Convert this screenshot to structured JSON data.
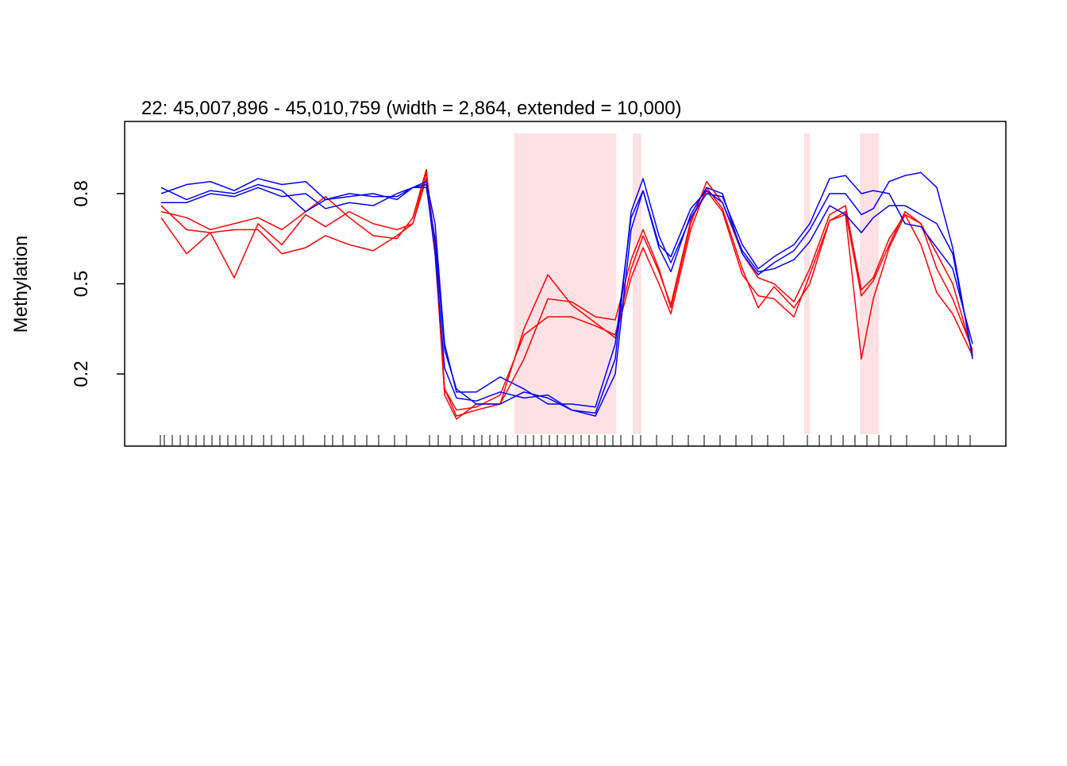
{
  "chart_data": {
    "type": "line",
    "title": "22: 45,007,896 - 45,010,759 (width = 2,864, extended = 10,000)",
    "y_label": "Methylation",
    "xlim": [
      44996982,
      45021674
    ],
    "ylim": [
      -0.04,
      1.04
    ],
    "yticks": [
      0.2,
      0.5,
      0.8
    ],
    "region_color": "#fde1e4",
    "regions": [
      {
        "start": 45007896,
        "end": 45010759
      },
      {
        "start": 45011219,
        "end": 45011463
      },
      {
        "start": 45016024,
        "end": 45016179
      },
      {
        "start": 45017581,
        "end": 45018115
      }
    ],
    "x": [
      44998005,
      44998717,
      44999384,
      45000052,
      45000719,
      45001387,
      45002054,
      45002610,
      45003277,
      45003945,
      45004612,
      45005057,
      45005435,
      45005680,
      45005947,
      45006280,
      45006837,
      45007504,
      45008171,
      45008839,
      45009506,
      45010173,
      45010729,
      45011174,
      45011508,
      45011953,
      45012287,
      45012843,
      45013288,
      45013732,
      45014289,
      45014734,
      45015178,
      45015735,
      45016179,
      45016736,
      45017180,
      45017625,
      45017959,
      45018404,
      45018849,
      45019294,
      45019739,
      45020184,
      45020740
    ],
    "series": [
      {
        "color": "#ff0000",
        "values": [
          0.74,
          0.72,
          0.68,
          0.7,
          0.72,
          0.68,
          0.74,
          0.79,
          0.72,
          0.66,
          0.65,
          0.72,
          0.88,
          0.6,
          0.15,
          0.06,
          0.08,
          0.1,
          0.25,
          0.45,
          0.44,
          0.39,
          0.38,
          0.58,
          0.68,
          0.55,
          0.42,
          0.7,
          0.84,
          0.77,
          0.6,
          0.52,
          0.5,
          0.44,
          0.55,
          0.73,
          0.76,
          0.48,
          0.52,
          0.65,
          0.73,
          0.7,
          0.55,
          0.45,
          0.28
        ]
      },
      {
        "color": "#ff0000",
        "values": [
          0.72,
          0.6,
          0.67,
          0.52,
          0.7,
          0.63,
          0.73,
          0.69,
          0.74,
          0.7,
          0.68,
          0.7,
          0.87,
          0.62,
          0.13,
          0.05,
          0.1,
          0.1,
          0.35,
          0.53,
          0.43,
          0.37,
          0.32,
          0.52,
          0.62,
          0.5,
          0.4,
          0.68,
          0.82,
          0.75,
          0.55,
          0.42,
          0.49,
          0.42,
          0.5,
          0.71,
          0.73,
          0.25,
          0.45,
          0.62,
          0.73,
          0.63,
          0.47,
          0.4,
          0.26
        ]
      },
      {
        "color": "#ff0000",
        "values": [
          0.76,
          0.68,
          0.67,
          0.68,
          0.68,
          0.6,
          0.62,
          0.66,
          0.63,
          0.61,
          0.66,
          0.7,
          0.85,
          0.64,
          0.15,
          0.08,
          0.09,
          0.13,
          0.33,
          0.39,
          0.39,
          0.36,
          0.33,
          0.55,
          0.66,
          0.54,
          0.43,
          0.71,
          0.81,
          0.74,
          0.53,
          0.46,
          0.45,
          0.39,
          0.53,
          0.71,
          0.74,
          0.46,
          0.51,
          0.63,
          0.74,
          0.7,
          0.6,
          0.5,
          0.27
        ]
      },
      {
        "color": "#0000ff",
        "values": [
          0.8,
          0.83,
          0.84,
          0.81,
          0.85,
          0.83,
          0.84,
          0.78,
          0.8,
          0.79,
          0.79,
          0.82,
          0.82,
          0.65,
          0.28,
          0.15,
          0.1,
          0.1,
          0.14,
          0.12,
          0.08,
          0.07,
          0.25,
          0.74,
          0.85,
          0.66,
          0.57,
          0.72,
          0.8,
          0.79,
          0.63,
          0.55,
          0.59,
          0.63,
          0.7,
          0.85,
          0.86,
          0.8,
          0.81,
          0.8,
          0.7,
          0.69,
          0.62,
          0.55,
          0.3
        ]
      },
      {
        "color": "#0000ff",
        "values": [
          0.82,
          0.78,
          0.81,
          0.8,
          0.83,
          0.81,
          0.74,
          0.78,
          0.79,
          0.8,
          0.78,
          0.82,
          0.83,
          0.6,
          0.22,
          0.12,
          0.11,
          0.14,
          0.12,
          0.13,
          0.08,
          0.06,
          0.2,
          0.68,
          0.81,
          0.62,
          0.54,
          0.73,
          0.82,
          0.8,
          0.6,
          0.53,
          0.57,
          0.61,
          0.68,
          0.8,
          0.8,
          0.73,
          0.75,
          0.84,
          0.86,
          0.87,
          0.82,
          0.62,
          0.25
        ]
      },
      {
        "color": "#0000ff",
        "values": [
          0.77,
          0.77,
          0.8,
          0.79,
          0.82,
          0.79,
          0.8,
          0.75,
          0.77,
          0.76,
          0.8,
          0.82,
          0.84,
          0.7,
          0.3,
          0.14,
          0.14,
          0.19,
          0.15,
          0.1,
          0.1,
          0.09,
          0.3,
          0.72,
          0.81,
          0.63,
          0.59,
          0.75,
          0.81,
          0.77,
          0.61,
          0.54,
          0.55,
          0.58,
          0.64,
          0.76,
          0.73,
          0.67,
          0.72,
          0.76,
          0.76,
          0.73,
          0.7,
          0.6,
          0.26
        ]
      }
    ],
    "rug": [
      44997983,
      44998094,
      44998317,
      44998539,
      44998762,
      44998984,
      44999207,
      44999429,
      44999651,
      44999874,
      45000096,
      45000319,
      45000541,
      45000875,
      45001097,
      45001431,
      45001765,
      45001987,
      45002588,
      45002810,
      45003099,
      45003433,
      45003767,
      45004100,
      45004545,
      45004879,
      45005524,
      45005769,
      45006102,
      45006436,
      45006770,
      45006992,
      45007215,
      45007437,
      45007660,
      45007993,
      45008216,
      45008438,
      45008661,
      45008883,
      45009106,
      45009328,
      45009550,
      45009773,
      45009995,
      45010218,
      45010440,
      45010663,
      45010885,
      45011219,
      45011441,
      45011886,
      45012331,
      45012776,
      45013221,
      45013666,
      45014111,
      45014556,
      45015000,
      45015445,
      45016113,
      45016446,
      45016780,
      45017114,
      45017447,
      45017781,
      45018115,
      45018448,
      45018893,
      45019672,
      45020006,
      45020339,
      45020673
    ]
  }
}
